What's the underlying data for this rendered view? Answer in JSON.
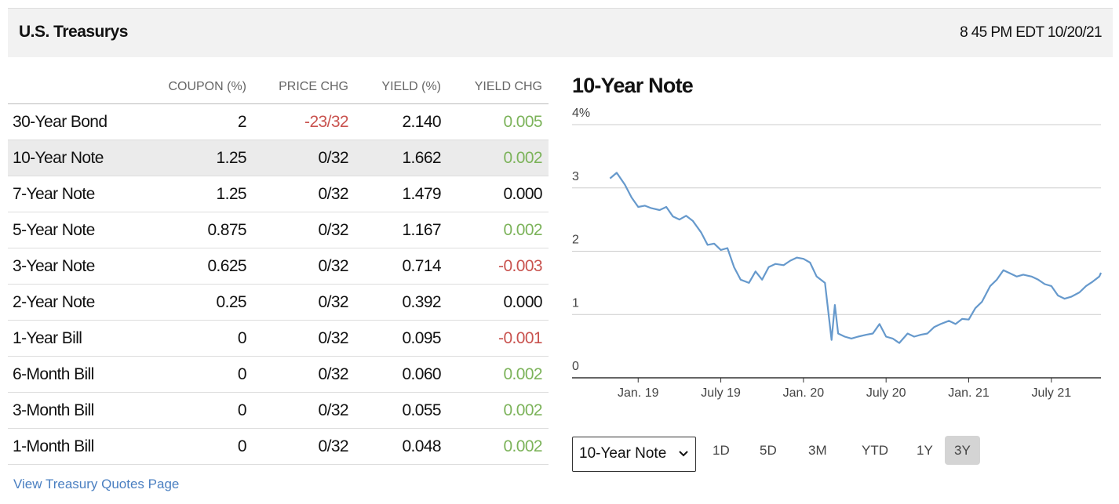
{
  "header": {
    "title": "U.S. Treasurys",
    "timestamp": "8 45 PM EDT 10/20/21"
  },
  "table": {
    "columns": [
      "COUPON (%)",
      "PRICE CHG",
      "YIELD (%)",
      "YIELD CHG"
    ],
    "rows": [
      [
        "30-Year Bond",
        "2",
        "-23/32",
        "2.140",
        "0.005"
      ],
      [
        "10-Year Note",
        "1.25",
        "0/32",
        "1.662",
        "0.002"
      ],
      [
        "7-Year Note",
        "1.25",
        "0/32",
        "1.479",
        "0.000"
      ],
      [
        "5-Year Note",
        "0.875",
        "0/32",
        "1.167",
        "0.002"
      ],
      [
        "3-Year Note",
        "0.625",
        "0/32",
        "0.714",
        "-0.003"
      ],
      [
        "2-Year Note",
        "0.25",
        "0/32",
        "0.392",
        "0.000"
      ],
      [
        "1-Year Bill",
        "0",
        "0/32",
        "0.095",
        "-0.001"
      ],
      [
        "6-Month Bill",
        "0",
        "0/32",
        "0.060",
        "0.002"
      ],
      [
        "3-Month Bill",
        "0",
        "0/32",
        "0.055",
        "0.002"
      ],
      [
        "1-Month Bill",
        "0",
        "0/32",
        "0.048",
        "0.002"
      ]
    ],
    "highlighted_row": 1
  },
  "link": "View Treasury Quotes Page",
  "chart_data": {
    "type": "line",
    "title": "10-Year Note",
    "color": "#6699cc",
    "grid": true,
    "x": [
      2018.83,
      2018.87,
      2018.92,
      2018.96,
      2019.0,
      2019.04,
      2019.08,
      2019.13,
      2019.17,
      2019.21,
      2019.25,
      2019.29,
      2019.33,
      2019.38,
      2019.42,
      2019.46,
      2019.5,
      2019.54,
      2019.58,
      2019.62,
      2019.67,
      2019.71,
      2019.75,
      2019.79,
      2019.83,
      2019.88,
      2019.92,
      2019.96,
      2020.0,
      2020.04,
      2020.08,
      2020.13,
      2020.17,
      2020.19,
      2020.21,
      2020.25,
      2020.29,
      2020.33,
      2020.38,
      2020.42,
      2020.46,
      2020.5,
      2020.54,
      2020.58,
      2020.63,
      2020.67,
      2020.71,
      2020.75,
      2020.79,
      2020.83,
      2020.88,
      2020.92,
      2020.96,
      2021.0,
      2021.04,
      2021.08,
      2021.13,
      2021.17,
      2021.21,
      2021.25,
      2021.29,
      2021.33,
      2021.38,
      2021.42,
      2021.46,
      2021.5,
      2021.54,
      2021.58,
      2021.62,
      2021.67,
      2021.71,
      2021.75,
      2021.79,
      2021.8
    ],
    "values": [
      3.15,
      3.24,
      3.05,
      2.85,
      2.7,
      2.72,
      2.68,
      2.65,
      2.7,
      2.55,
      2.5,
      2.56,
      2.48,
      2.3,
      2.1,
      2.12,
      2.02,
      2.05,
      1.75,
      1.55,
      1.5,
      1.68,
      1.55,
      1.75,
      1.8,
      1.78,
      1.85,
      1.9,
      1.88,
      1.82,
      1.6,
      1.5,
      0.6,
      1.15,
      0.7,
      0.65,
      0.62,
      0.65,
      0.68,
      0.7,
      0.85,
      0.65,
      0.62,
      0.55,
      0.7,
      0.65,
      0.68,
      0.7,
      0.8,
      0.85,
      0.9,
      0.85,
      0.93,
      0.92,
      1.1,
      1.2,
      1.45,
      1.55,
      1.7,
      1.65,
      1.6,
      1.63,
      1.6,
      1.55,
      1.48,
      1.45,
      1.3,
      1.25,
      1.28,
      1.35,
      1.45,
      1.52,
      1.6,
      1.66
    ],
    "xlim": [
      2018.6,
      2021.8
    ],
    "xticks": [
      {
        "value": 2019.0,
        "label": "Jan. 19"
      },
      {
        "value": 2019.5,
        "label": "July 19"
      },
      {
        "value": 2020.0,
        "label": "Jan. 20"
      },
      {
        "value": 2020.5,
        "label": "July 20"
      },
      {
        "value": 2021.0,
        "label": "Jan. 21"
      },
      {
        "value": 2021.5,
        "label": "July 21"
      }
    ],
    "ylim": [
      0,
      4
    ],
    "yticks": [
      0,
      1,
      2,
      3,
      {
        "value": 4,
        "label": "4%"
      }
    ]
  },
  "controls": {
    "selected": "10-Year Note",
    "ranges": [
      "1D",
      "5D",
      "3M",
      "YTD",
      "1Y",
      "3Y"
    ],
    "active_range": 5
  }
}
